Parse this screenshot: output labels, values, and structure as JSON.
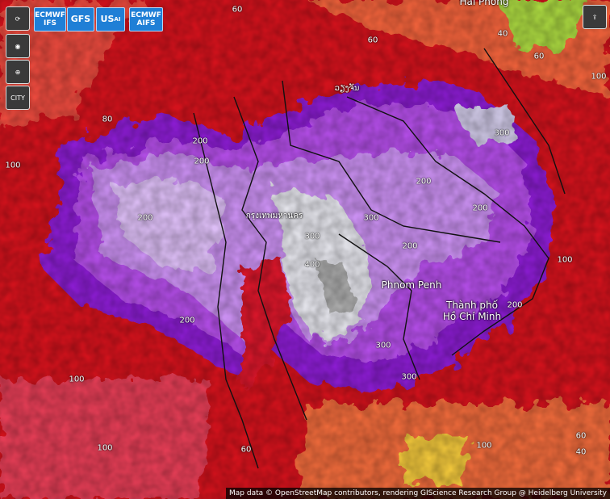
{
  "models": [
    {
      "text": "ECMWF IFS"
    },
    {
      "text": "GFS"
    },
    {
      "main": "US",
      "sub": "AI"
    },
    {
      "text": "ECMWF AIFS"
    }
  ],
  "city_button": "CITY",
  "places": [
    "Phnom Penh",
    "Thành phố Hồ Chí Minh",
    "กรุงเทพมหานคร",
    "ວຽງຈັນ",
    "Hải Phòng"
  ],
  "contour_labels": [
    200,
    200,
    200,
    200,
    300,
    300,
    400,
    300,
    300,
    200,
    200,
    200,
    200,
    300,
    100,
    100,
    60,
    60,
    40,
    60,
    60,
    40,
    80,
    100,
    100,
    100,
    60,
    100
  ],
  "attribution": "Map data © OpenStreetMap contributors, rendering GIScience Research Group @ Heidelberg University"
}
